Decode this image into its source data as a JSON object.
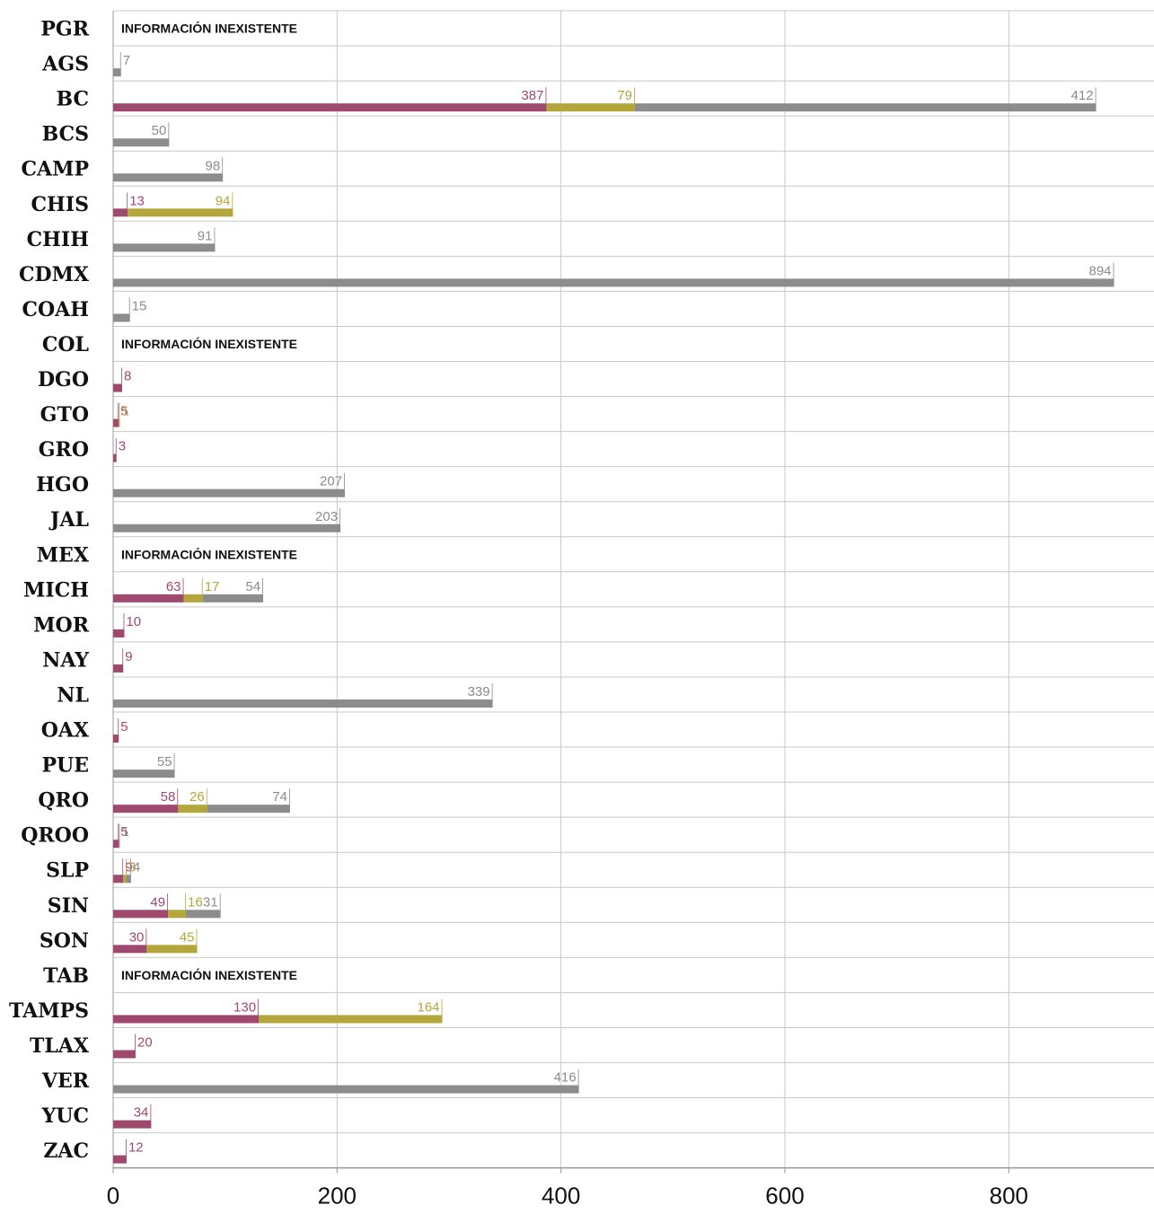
{
  "colors": {
    "magenta": "#a0496f",
    "olive": "#b3a63a",
    "gray": "#8c8c8c",
    "grid": "#c8c8c8"
  },
  "chart_data": {
    "type": "bar",
    "orientation": "horizontal",
    "stacked": true,
    "xlim": [
      0,
      930
    ],
    "xticks": [
      0,
      200,
      400,
      600,
      800
    ],
    "grid": true,
    "no_data_label": "INFORMACIÓN INEXISTENTE",
    "categories": [
      "PGR",
      "AGS",
      "BC",
      "BCS",
      "CAMP",
      "CHIS",
      "CHIH",
      "CDMX",
      "COAH",
      "COL",
      "DGO",
      "GTO",
      "GRO",
      "HGO",
      "JAL",
      "MEX",
      "MICH",
      "MOR",
      "NAY",
      "NL",
      "OAX",
      "PUE",
      "QRO",
      "QROO",
      "SLP",
      "SIN",
      "SON",
      "TAB",
      "TAMPS",
      "TLAX",
      "VER",
      "YUC",
      "ZAC"
    ],
    "no_data": [
      "PGR",
      "COL",
      "MEX",
      "TAB"
    ],
    "series": [
      {
        "color_key": "magenta",
        "values": [
          null,
          null,
          387,
          null,
          null,
          13,
          null,
          null,
          null,
          null,
          8,
          5,
          3,
          null,
          null,
          null,
          63,
          10,
          9,
          null,
          5,
          null,
          58,
          5,
          9,
          49,
          30,
          null,
          130,
          20,
          null,
          34,
          12
        ]
      },
      {
        "color_key": "olive",
        "values": [
          null,
          null,
          79,
          null,
          null,
          94,
          null,
          null,
          null,
          null,
          null,
          1,
          null,
          null,
          null,
          null,
          17,
          null,
          null,
          null,
          null,
          null,
          26,
          null,
          3,
          16,
          45,
          null,
          164,
          null,
          null,
          null,
          null
        ]
      },
      {
        "color_key": "gray",
        "values": [
          null,
          7,
          412,
          50,
          98,
          null,
          91,
          894,
          15,
          null,
          null,
          null,
          null,
          207,
          203,
          null,
          54,
          null,
          null,
          339,
          null,
          55,
          74,
          1,
          4,
          31,
          null,
          null,
          null,
          null,
          416,
          null,
          null
        ]
      }
    ]
  }
}
